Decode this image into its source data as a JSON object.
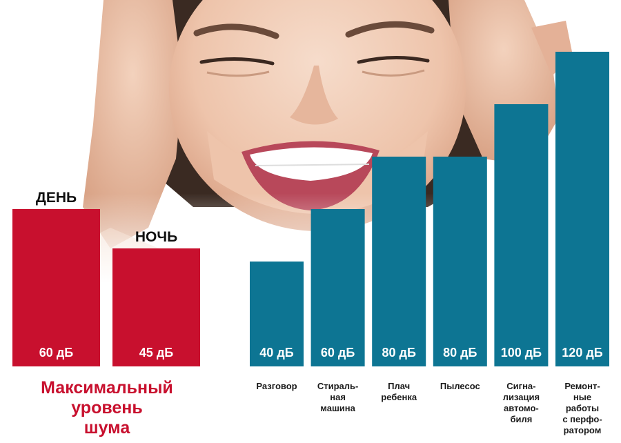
{
  "colors": {
    "limit_bar": "#c8102e",
    "source_bar": "#0d7593",
    "caption": "#c8102e",
    "bar_value_text": "#ffffff",
    "category_text": "#1a1a1a"
  },
  "photo": {
    "icon": "woman-covering-ears-image"
  },
  "caption": {
    "lines": [
      "Максимальный",
      "уровень",
      "шума"
    ]
  },
  "chart_data": {
    "type": "bar",
    "unit": "дБ",
    "title": "",
    "xlabel": "",
    "ylabel": "",
    "ylim": [
      0,
      120
    ],
    "limits": [
      {
        "name": "ДЕНЬ",
        "value": 60,
        "value_label": "60 дБ"
      },
      {
        "name": "НОЧЬ",
        "value": 45,
        "value_label": "45 дБ"
      }
    ],
    "sources": [
      {
        "lines": [
          "Разговор"
        ],
        "value": 40,
        "value_label": "40 дБ"
      },
      {
        "lines": [
          "Стираль-",
          "ная",
          "машина"
        ],
        "value": 60,
        "value_label": "60 дБ"
      },
      {
        "lines": [
          "Плач",
          "ребенка"
        ],
        "value": 80,
        "value_label": "80 дБ"
      },
      {
        "lines": [
          "Пылесос"
        ],
        "value": 80,
        "value_label": "80 дБ"
      },
      {
        "lines": [
          "Сигна-",
          "лизация",
          "автомо-",
          "биля"
        ],
        "value": 100,
        "value_label": "100 дБ"
      },
      {
        "lines": [
          "Ремонт-",
          "ные",
          "работы",
          "с перфо-",
          "ратором"
        ],
        "value": 120,
        "value_label": "120 дБ"
      }
    ]
  }
}
